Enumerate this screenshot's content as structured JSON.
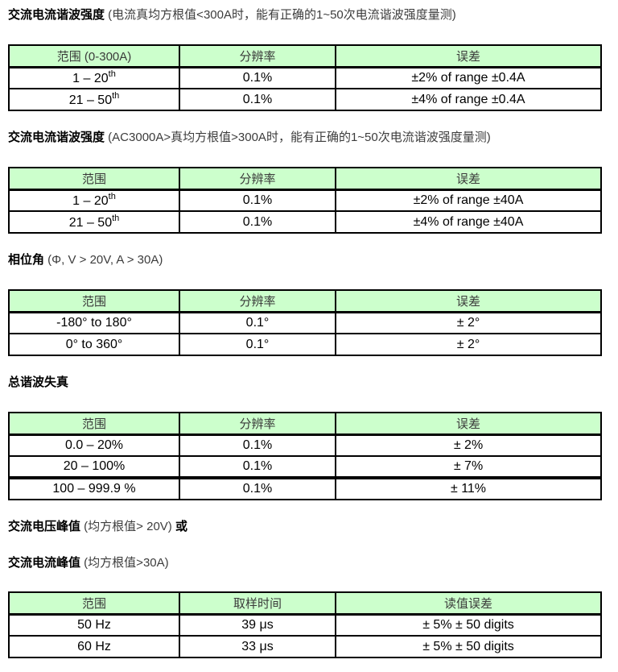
{
  "colors": {
    "header_bg": "#ccffcc",
    "border": "#000000",
    "header_text": "#3a3a3a",
    "body_text": "#000000"
  },
  "sections": [
    {
      "titles": [
        {
          "bold": "交流电流谐波强度",
          "normal": " (电流真均方根值<300A时，能有正确的1~50次电流谐波强度量测)"
        }
      ],
      "table": {
        "headers": [
          "范围 (0-300A)",
          "分辨率",
          "误差"
        ],
        "rows": [
          {
            "range": "1 – 20",
            "range_sup": "th",
            "resolution": "0.1%",
            "error": "±2% of range ±0.4A"
          },
          {
            "range": "21 – 50",
            "range_sup": "th",
            "resolution": "0.1%",
            "error": "±4% of range ±0.4A"
          }
        ]
      }
    },
    {
      "titles": [
        {
          "bold": "交流电流谐波强度",
          "normal": " (AC3000A>真均方根值>300A时，能有正确的1~50次电流谐波强度量测)"
        }
      ],
      "table": {
        "headers": [
          "范围",
          "分辨率",
          "误差"
        ],
        "rows": [
          {
            "range": "1 – 20",
            "range_sup": "th",
            "resolution": "0.1%",
            "error": "±2% of range ±40A"
          },
          {
            "range": "21 – 50",
            "range_sup": "th",
            "resolution": "0.1%",
            "error": "±4% of range ±40A"
          }
        ]
      }
    },
    {
      "titles": [
        {
          "bold": "相位角",
          "normal": " (Φ, V > 20V, A > 30A)"
        }
      ],
      "table": {
        "headers": [
          "范围",
          "分辨率",
          "误差"
        ],
        "rows": [
          {
            "range": "-180° to 180°",
            "resolution": "0.1°",
            "error": "± 2°"
          },
          {
            "range": "0° to 360°",
            "resolution": "0.1°",
            "error": "± 2°"
          }
        ]
      }
    },
    {
      "titles": [
        {
          "bold": "总谐波失真",
          "normal": ""
        }
      ],
      "table": {
        "headers": [
          "范围",
          "分辨率",
          "误差"
        ],
        "rows": [
          {
            "range": "0.0 – 20%",
            "resolution": "0.1%",
            "error": "± 2%"
          },
          {
            "range": "20 – 100%",
            "resolution": "0.1%",
            "error": "± 7%"
          },
          {
            "range": "100 – 999.9 %",
            "resolution": "0.1%",
            "error": "± 11%"
          }
        ]
      }
    },
    {
      "titles": [
        {
          "bold": "交流电压峰值",
          "normal": " (均方根值> 20V) ",
          "bold2": "或"
        },
        {
          "bold": "交流电流峰值",
          "normal": " (均方根值>30A)"
        }
      ],
      "table": {
        "headers": [
          "范围",
          "取样时间",
          "读值误差"
        ],
        "rows": [
          {
            "range": "50 Hz",
            "resolution": "39 μs",
            "error": "± 5% ± 50 digits"
          },
          {
            "range": "60 Hz",
            "resolution": "33 μs",
            "error": "± 5% ± 50 digits"
          }
        ]
      }
    }
  ]
}
